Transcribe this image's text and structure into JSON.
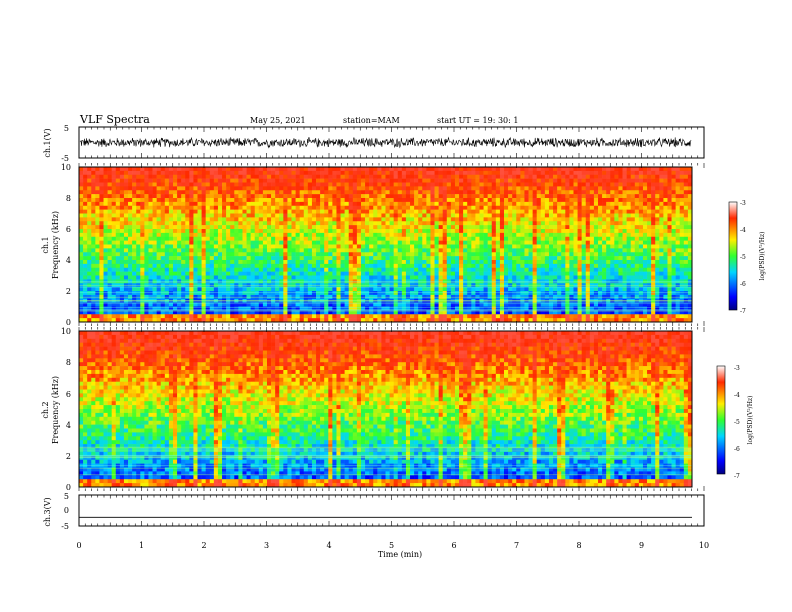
{
  "header": {
    "title": "VLF Spectra",
    "date": "May 25, 2021",
    "station": "station=MAM",
    "start": "start UT =   19: 30: 1"
  },
  "chart_data": [
    {
      "type": "line",
      "panel": "ch1-waveform",
      "ylabel": "ch.1(V)",
      "ylim": [
        -5,
        5
      ],
      "yticks": [
        "5",
        "-5"
      ],
      "xlim": [
        0,
        10
      ],
      "description_of_trace": "dense waveform, roughly -1.5 to 1.5 V",
      "amplitude_V": 1.6
    },
    {
      "type": "heatmap",
      "panel": "ch1-spectrogram",
      "ylabel": "ch.1",
      "ylabel2": "Frequency (kHz)",
      "ylim": [
        0,
        10
      ],
      "yticks": [
        "0",
        "2",
        "4",
        "6",
        "8",
        "10"
      ],
      "xlim": [
        0,
        10
      ],
      "colorbar": {
        "label": "log(PSD)(V²/Hz)",
        "range": [
          -7,
          -3
        ],
        "ticks": [
          "-3",
          "-4",
          "-5",
          "-6",
          "-7"
        ]
      },
      "low_band_level": -6.5,
      "high_band_level": -3.3
    },
    {
      "type": "heatmap",
      "panel": "ch2-spectrogram",
      "ylabel": "ch.2",
      "ylabel2": "Frequency (kHz)",
      "ylim": [
        0,
        10
      ],
      "yticks": [
        "0",
        "2",
        "4",
        "6",
        "8",
        "10"
      ],
      "xlim": [
        0,
        10
      ],
      "colorbar": {
        "label": "log(PSD)(V²/Hz)",
        "range": [
          -7,
          -3
        ],
        "ticks": [
          "-3",
          "-4",
          "-5",
          "-6",
          "-7"
        ]
      },
      "low_band_level": -6.4,
      "high_band_level": -3.2
    },
    {
      "type": "line",
      "panel": "ch3-waveform",
      "ylabel": "ch.3(V)",
      "ylim": [
        -5,
        5
      ],
      "yticks": [
        "5",
        "0",
        "-5"
      ],
      "xlim": [
        0,
        10
      ],
      "xlabel": "Time (min)",
      "xticks": [
        "0",
        "1",
        "2",
        "3",
        "4",
        "5",
        "6",
        "7",
        "8",
        "9",
        "10"
      ],
      "constant_value_V": -2.2
    }
  ]
}
